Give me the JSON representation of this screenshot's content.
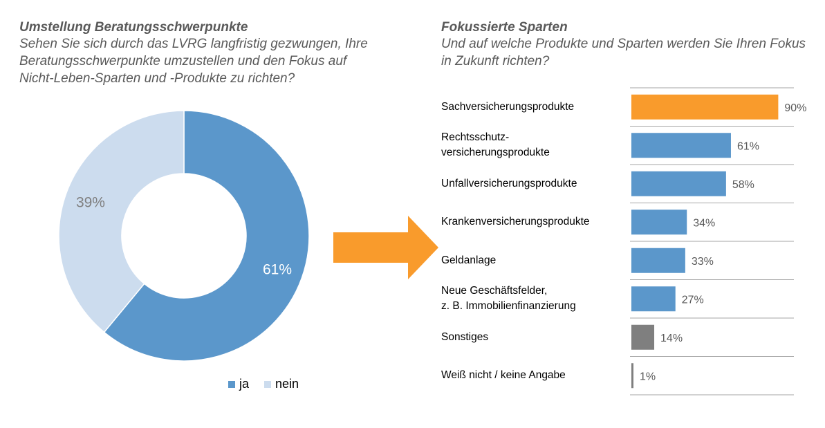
{
  "left_panel": {
    "title": "Umstellung Beratungsschwerpunkte",
    "question": "Sehen Sie sich durch das LVRG langfristig gezwungen, Ihre Beratungsschwerpunkte umzustellen und den Fokus auf Nicht-Leben-Sparten und -Produkte zu richten?"
  },
  "right_panel": {
    "title": "Fokussierte Sparten",
    "question": "Und auf welche Produkte und Sparten werden Sie Ihren Fokus in Zukunft richten?"
  },
  "colors": {
    "ja": "#5b97cb",
    "nein": "#ccdcee",
    "highlight": "#f99b2c",
    "bar": "#5b97cb",
    "sonstiges": "#7f7f7f",
    "arrow": "#f99b2c",
    "label_text": "#595959",
    "gridline": "#a6a6a6"
  },
  "chart_data": [
    {
      "type": "pie",
      "variant": "donut",
      "slices": [
        {
          "name": "ja",
          "value": 61,
          "label": "61%"
        },
        {
          "name": "nein",
          "value": 39,
          "label": "39%"
        }
      ],
      "legend": [
        "ja",
        "nein"
      ],
      "legend_placement": "bottom"
    },
    {
      "type": "bar",
      "orientation": "horizontal",
      "categories": [
        [
          "Sachversicherungsprodukte"
        ],
        [
          "Rechtsschutz-",
          "versicherungsprodukte"
        ],
        [
          "Unfallversicherungsprodukte"
        ],
        [
          "Krankenversicherungsprodukte"
        ],
        [
          "Geldanlage"
        ],
        [
          "Neue Geschäftsfelder,",
          "z. B. Immobilienfinanzierung"
        ],
        [
          "Sonstiges"
        ],
        [
          "Weiß nicht / keine Angabe"
        ]
      ],
      "values": [
        90,
        61,
        58,
        34,
        33,
        27,
        14,
        1
      ],
      "value_labels": [
        "90%",
        "61%",
        "58%",
        "34%",
        "33%",
        "27%",
        "14%",
        "1%"
      ],
      "bar_color_keys": [
        "highlight",
        "bar",
        "bar",
        "bar",
        "bar",
        "bar",
        "sonstiges",
        "sonstiges"
      ],
      "xlim": [
        0,
        100
      ]
    }
  ]
}
